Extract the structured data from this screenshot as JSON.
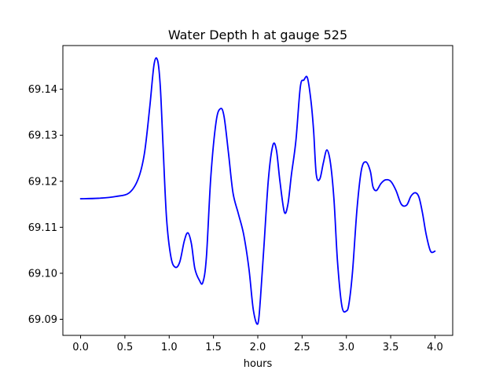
{
  "chart_data": {
    "type": "line",
    "title": "Water Depth h at gauge 525",
    "xlabel": "hours",
    "ylabel": "",
    "xlim": [
      -0.2,
      4.2
    ],
    "ylim": [
      69.0865,
      69.1495
    ],
    "xticks": [
      0.0,
      0.5,
      1.0,
      1.5,
      2.0,
      2.5,
      3.0,
      3.5,
      4.0
    ],
    "xtick_labels": [
      "0.0",
      "0.5",
      "1.0",
      "1.5",
      "2.0",
      "2.5",
      "3.0",
      "3.5",
      "4.0"
    ],
    "yticks": [
      69.09,
      69.1,
      69.11,
      69.12,
      69.13,
      69.14
    ],
    "ytick_labels": [
      "69.09",
      "69.10",
      "69.11",
      "69.12",
      "69.13",
      "69.14"
    ],
    "grid": false,
    "series": [
      {
        "color": "#0000ff",
        "x": [
          0.0,
          0.2,
          0.4,
          0.55,
          0.65,
          0.72,
          0.78,
          0.83,
          0.87,
          0.9,
          0.93,
          0.97,
          1.02,
          1.07,
          1.12,
          1.17,
          1.21,
          1.25,
          1.29,
          1.34,
          1.38,
          1.42,
          1.47,
          1.53,
          1.58,
          1.62,
          1.67,
          1.72,
          1.78,
          1.84,
          1.9,
          1.95,
          2.0,
          2.03,
          2.07,
          2.12,
          2.17,
          2.21,
          2.25,
          2.3,
          2.34,
          2.38,
          2.43,
          2.48,
          2.52,
          2.56,
          2.6,
          2.63,
          2.66,
          2.7,
          2.74,
          2.78,
          2.82,
          2.86,
          2.9,
          2.95,
          3.0,
          3.03,
          3.07,
          3.12,
          3.17,
          3.22,
          3.27,
          3.3,
          3.34,
          3.39,
          3.44,
          3.5,
          3.56,
          3.62,
          3.68,
          3.73,
          3.78,
          3.82,
          3.86,
          3.9,
          3.95,
          4.0
        ],
        "values": [
          69.1162,
          69.1163,
          69.1167,
          69.1175,
          69.1205,
          69.126,
          69.136,
          69.1455,
          69.1462,
          69.1405,
          69.128,
          69.112,
          69.1035,
          69.1013,
          69.1025,
          69.107,
          69.1088,
          69.1065,
          69.101,
          69.0985,
          69.098,
          69.1035,
          69.121,
          69.133,
          69.1358,
          69.134,
          69.126,
          69.1175,
          69.113,
          69.1085,
          69.101,
          69.092,
          69.089,
          69.0945,
          69.106,
          69.1205,
          69.1278,
          69.1268,
          69.12,
          69.1133,
          69.115,
          69.1215,
          69.1288,
          69.1405,
          69.142,
          69.1425,
          69.1375,
          69.131,
          69.1215,
          69.1205,
          69.124,
          69.1268,
          69.124,
          69.116,
          69.1025,
          69.0928,
          69.0918,
          69.0935,
          69.1005,
          69.114,
          69.1225,
          69.1242,
          69.1222,
          69.1188,
          69.118,
          69.1195,
          69.1203,
          69.12,
          69.118,
          69.115,
          69.1148,
          69.1168,
          69.1175,
          69.1165,
          69.113,
          69.1085,
          69.1048,
          69.1048
        ]
      }
    ]
  }
}
